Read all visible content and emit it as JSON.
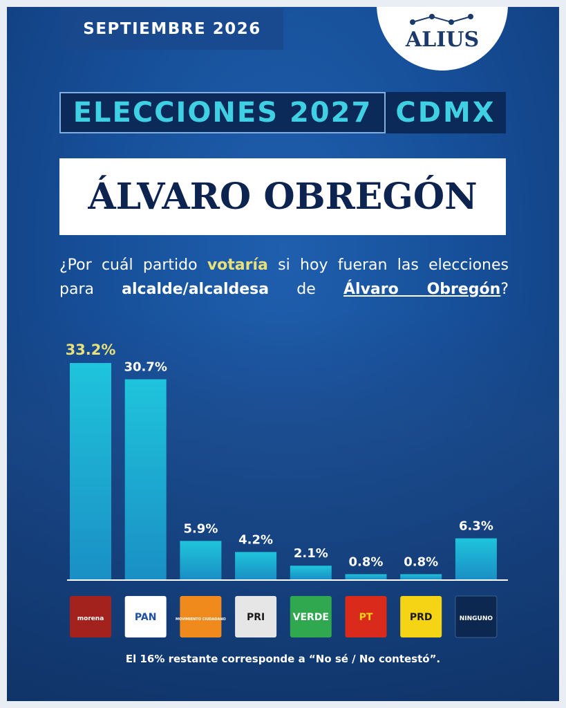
{
  "header": {
    "date": "SEPTIEMBRE 2026",
    "brand": "ALIUS"
  },
  "title": {
    "left": "ELECCIONES 2027",
    "right": "CDMX"
  },
  "place": "ÁLVARO OBREGÓN",
  "question": {
    "lines": [
      [
        "¿Por cuál partido ",
        "votaría",
        " si hoy fueran las elecciones"
      ],
      [
        "para ",
        "alcalde/alcaldesa",
        " de ",
        "Álvaro Obregón",
        "?"
      ]
    ]
  },
  "chart_data": {
    "type": "bar",
    "categories": [
      "morena",
      "PAN",
      "MOVIMIENTO CIUDADANO",
      "PRI",
      "VERDE",
      "PT",
      "PRD",
      "NINGUNO"
    ],
    "values": [
      33.2,
      30.7,
      5.9,
      4.2,
      2.1,
      0.8,
      0.8,
      6.3
    ],
    "value_labels": [
      "33.2%",
      "30.7%",
      "5.9%",
      "4.2%",
      "2.1%",
      "0.8%",
      "0.8%",
      "6.3%"
    ],
    "color": "#1fc4dc",
    "highlight_label_color": "#e8e07a",
    "logo_colors": [
      "#a3221d",
      "#ffffff",
      "#f08a1d",
      "#e6e6e6",
      "#2fa84f",
      "#d92a1c",
      "#f5d415",
      "#0d2850"
    ],
    "logo_text_colors": [
      "#ffffff",
      "#1d4fa3",
      "#ffffff",
      "#1a1a1a",
      "#ffffff",
      "#f5d415",
      "#1a1a1a",
      "#ffffff"
    ]
  },
  "footnote": "El 16% restante corresponde a “No sé / No contestó”."
}
